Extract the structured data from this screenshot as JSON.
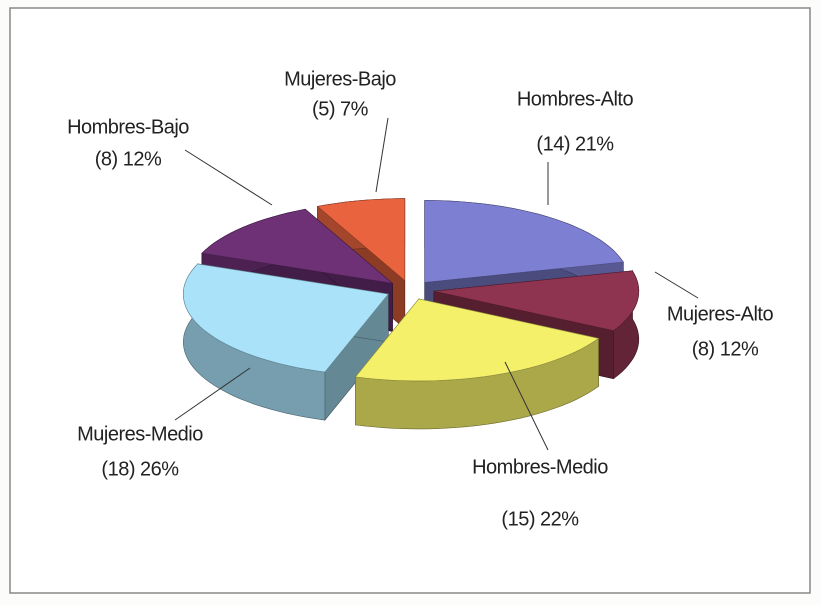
{
  "chart_data": {
    "type": "pie3d",
    "categories": [
      "Hombres-Alto",
      "Mujeres-Alto",
      "Hombres-Medio",
      "Mujeres-Medio",
      "Hombres-Bajo",
      "Mujeres-Bajo"
    ],
    "values": [
      21,
      12,
      22,
      26,
      12,
      7
    ],
    "value_labels": [
      "(14) 21%",
      "(8) 12%",
      "(15) 22%",
      "(18) 26%",
      "(8) 12%",
      "(5) 7%"
    ],
    "colors": [
      "#7d7fd2",
      "#8e3350",
      "#f4f06a",
      "#a9e2f9",
      "#6e3176",
      "#e9643e"
    ]
  }
}
